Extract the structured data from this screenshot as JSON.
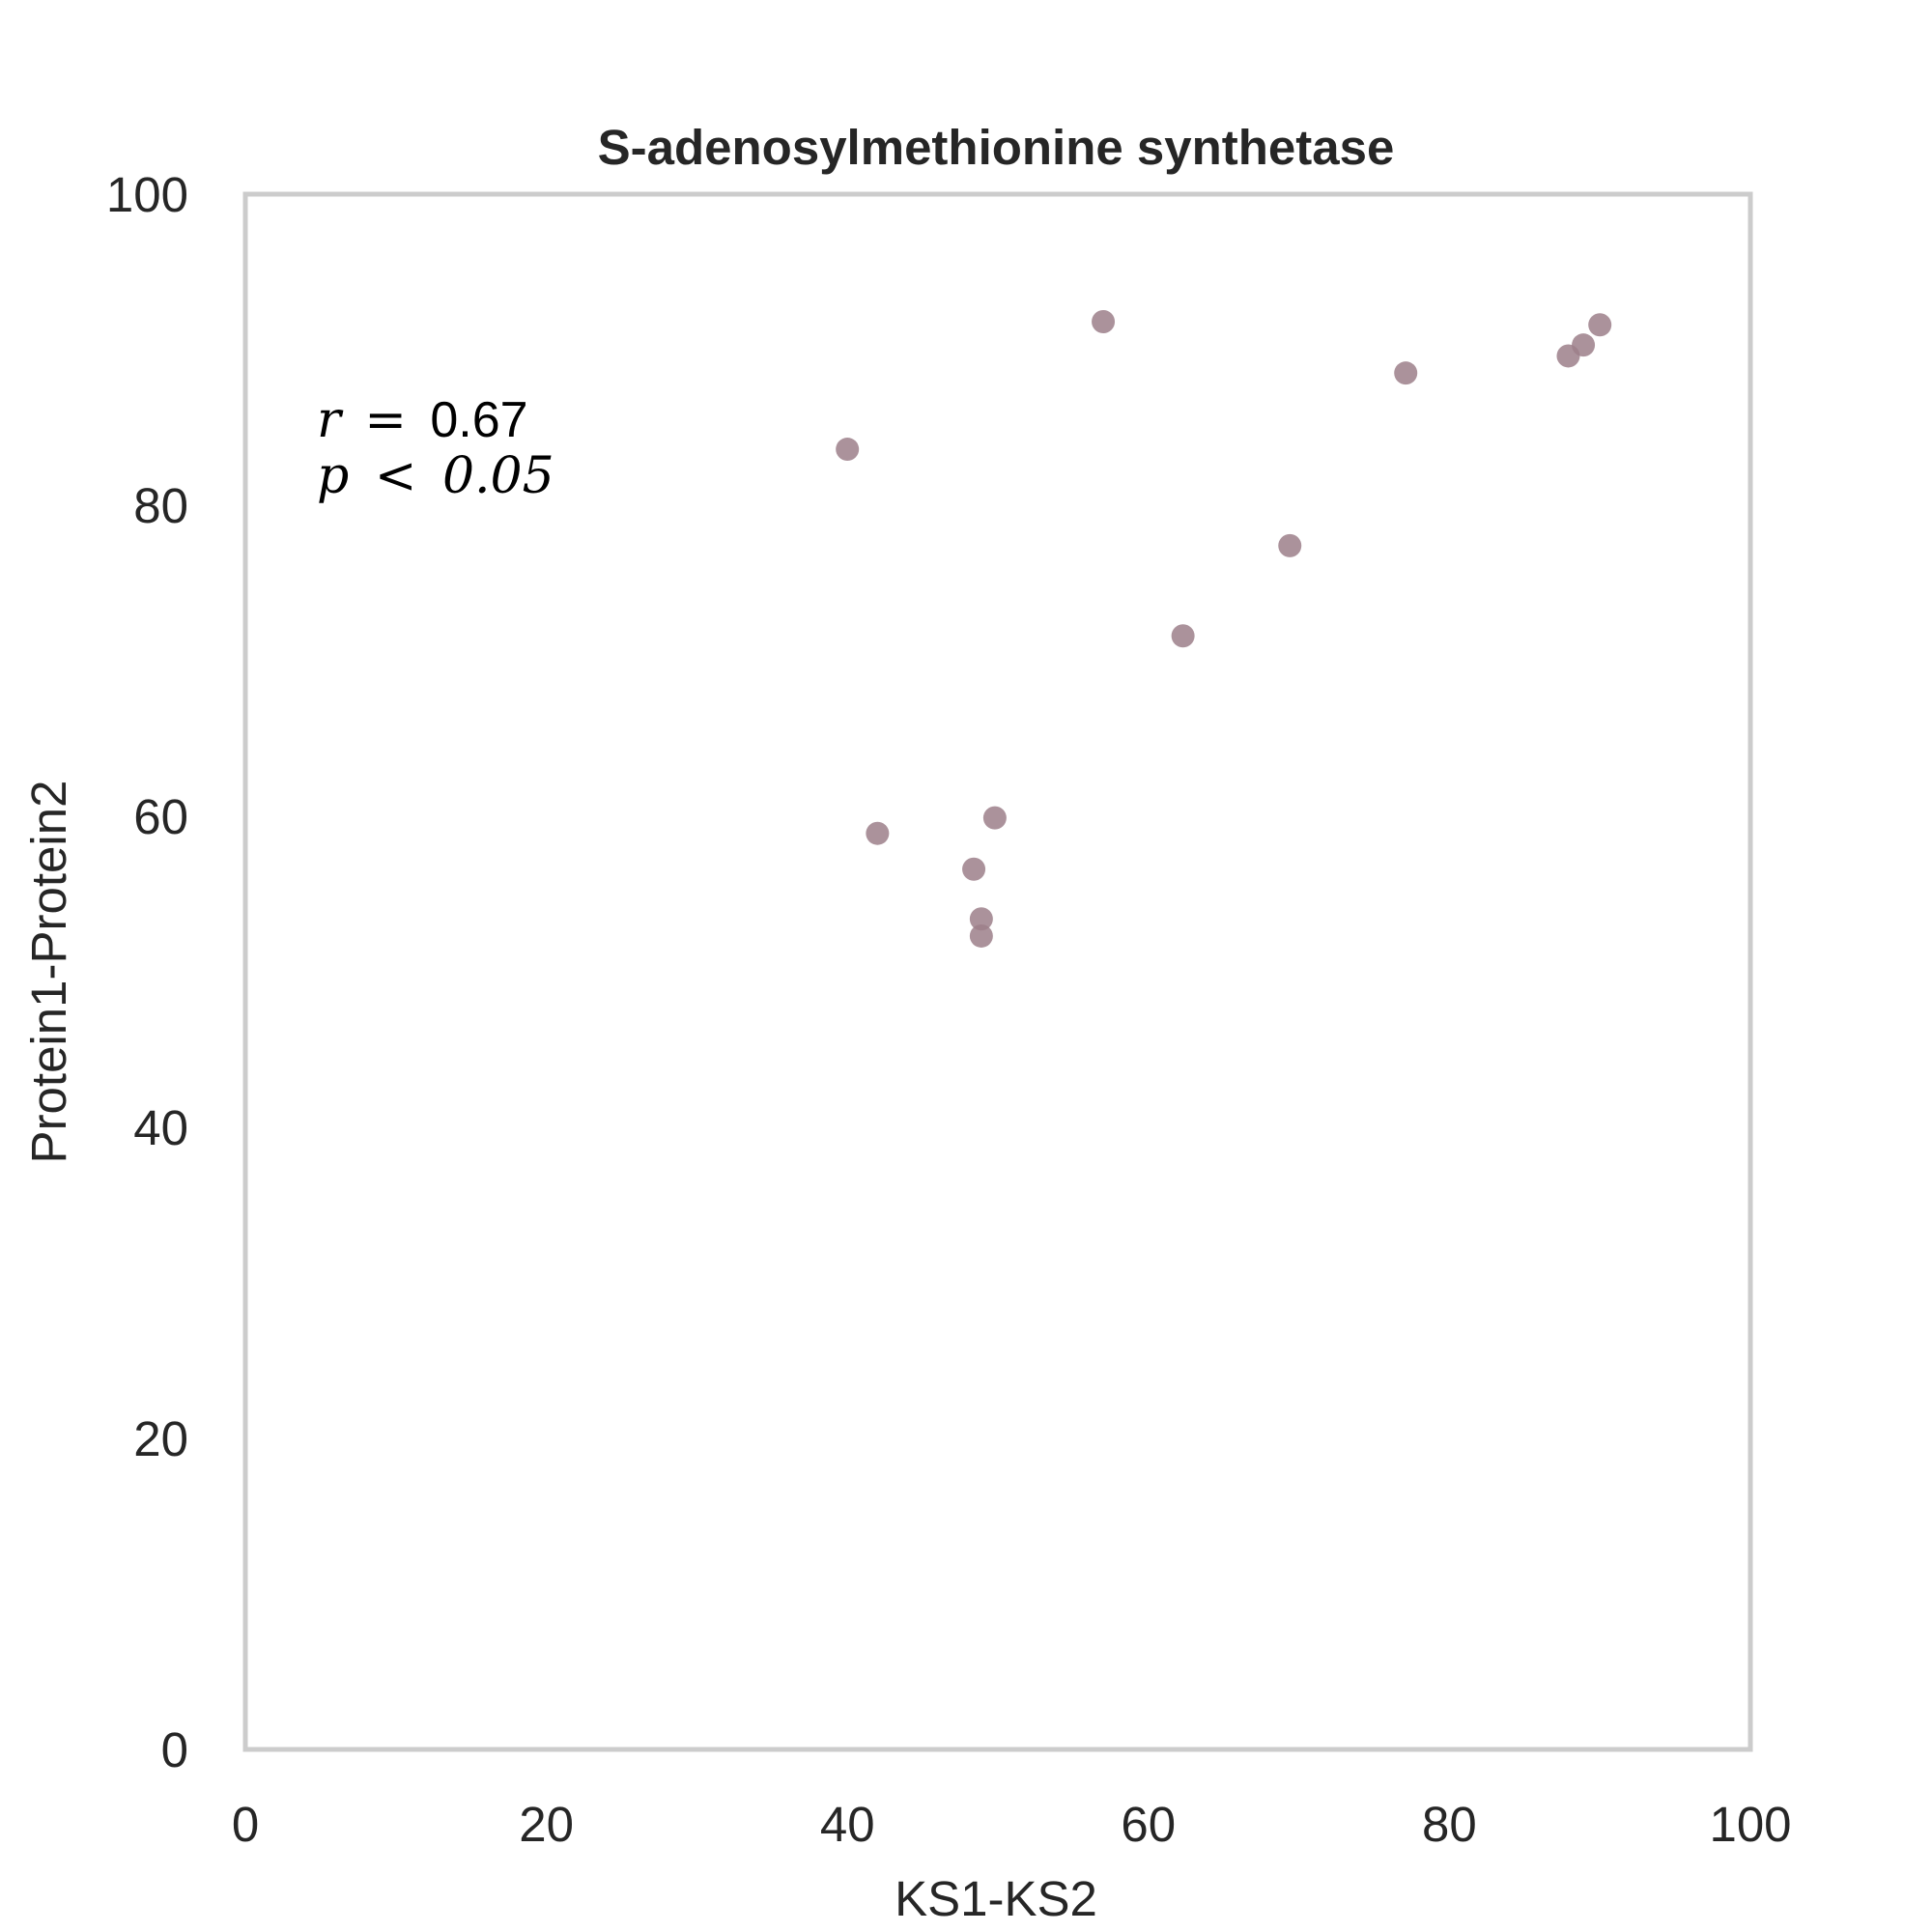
{
  "chart_data": {
    "type": "scatter",
    "title": "S-adenosylmethionine synthetase",
    "xlabel": "KS1-KS2",
    "ylabel": "Protein1-Protein2",
    "xlim": [
      0,
      100
    ],
    "ylim": [
      0,
      100
    ],
    "xticks": [
      0,
      20,
      40,
      60,
      80,
      100
    ],
    "yticks": [
      0,
      20,
      40,
      60,
      80,
      100
    ],
    "grid": false,
    "marker_color": "#9c7f8a",
    "frame_color": "#cccccc",
    "annotation": {
      "r_symbol": "r",
      "r_relation": "=",
      "r_value": "0.67",
      "p_symbol": "p",
      "p_relation": "<",
      "p_value": "0.05"
    },
    "points": [
      {
        "x": 40.0,
        "y": 83.6
      },
      {
        "x": 42.0,
        "y": 58.9
      },
      {
        "x": 48.4,
        "y": 56.6
      },
      {
        "x": 48.9,
        "y": 53.4
      },
      {
        "x": 48.9,
        "y": 52.3
      },
      {
        "x": 49.8,
        "y": 59.9
      },
      {
        "x": 57.0,
        "y": 91.8
      },
      {
        "x": 62.3,
        "y": 71.6
      },
      {
        "x": 69.4,
        "y": 77.4
      },
      {
        "x": 77.1,
        "y": 88.5
      },
      {
        "x": 87.9,
        "y": 89.6
      },
      {
        "x": 88.9,
        "y": 90.3
      },
      {
        "x": 90.0,
        "y": 91.6
      }
    ]
  }
}
